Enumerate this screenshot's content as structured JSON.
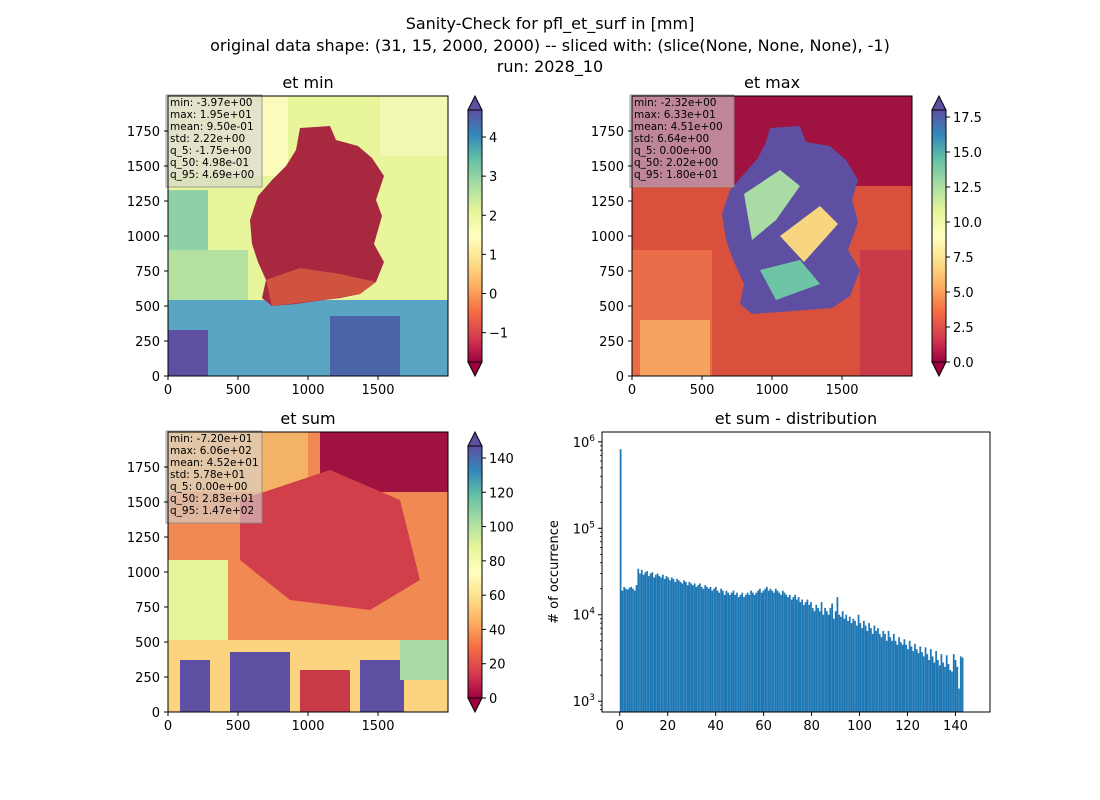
{
  "figure": {
    "title_lines": [
      "Sanity-Check for pfl_et_surf in [mm]",
      "original data shape: (31, 15, 2000, 2000) -- sliced with: (slice(None, None, None), -1)",
      "run: 2028_10"
    ]
  },
  "colormap": "Spectral",
  "colors": {
    "bar_fill": "#1f77b4",
    "stats_box": "#d3d3d3"
  },
  "chart_data": [
    {
      "type": "heatmap",
      "title": "et min",
      "xlim": [
        0,
        2000
      ],
      "ylim": [
        0,
        2000
      ],
      "xticks": [
        0,
        500,
        1000,
        1500
      ],
      "yticks": [
        0,
        250,
        500,
        750,
        1000,
        1250,
        1500,
        1750
      ],
      "colorbar": {
        "min": -1.75,
        "max": 4.69,
        "ticks": [
          -1,
          0,
          1,
          2,
          3,
          4
        ],
        "extend": "both"
      },
      "stats": [
        "min: -3.97e+00",
        "max: 1.95e+01",
        "mean: 9.50e-01",
        "std: 2.22e+00",
        "q_5: -1.75e+00",
        "q_50: 4.98e-01",
        "q_95: 4.69e+00"
      ]
    },
    {
      "type": "heatmap",
      "title": "et max",
      "xlim": [
        0,
        2000
      ],
      "ylim": [
        0,
        2000
      ],
      "xticks": [
        0,
        500,
        1000,
        1500
      ],
      "yticks": [
        0,
        250,
        500,
        750,
        1000,
        1250,
        1500,
        1750
      ],
      "colorbar": {
        "min": 0.0,
        "max": 18.0,
        "ticks": [
          0.0,
          2.5,
          5.0,
          7.5,
          10.0,
          12.5,
          15.0,
          17.5
        ],
        "extend": "both"
      },
      "stats": [
        "min: -2.32e+00",
        "max: 6.33e+01",
        "mean: 4.51e+00",
        "std: 6.64e+00",
        "q_5: 0.00e+00",
        "q_50: 2.02e+00",
        "q_95: 1.80e+01"
      ]
    },
    {
      "type": "heatmap",
      "title": "et sum",
      "xlim": [
        0,
        2000
      ],
      "ylim": [
        0,
        2000
      ],
      "xticks": [
        0,
        500,
        1000,
        1500
      ],
      "yticks": [
        0,
        250,
        500,
        750,
        1000,
        1250,
        1500,
        1750
      ],
      "colorbar": {
        "min": 0.0,
        "max": 147.0,
        "ticks": [
          0,
          20,
          40,
          60,
          80,
          100,
          120,
          140
        ],
        "extend": "both"
      },
      "stats": [
        "min: -7.20e+01",
        "max: 6.06e+02",
        "mean: 4.52e+01",
        "std: 5.78e+01",
        "q_5: 0.00e+00",
        "q_50: 2.83e+01",
        "q_95: 1.47e+02"
      ]
    },
    {
      "type": "bar",
      "title": "et sum - distribution",
      "xlabel": "",
      "ylabel": "# of occurrence",
      "xlim": [
        -7.4,
        154.4
      ],
      "ylog": true,
      "ylim": [
        750,
        1300000
      ],
      "xticks": [
        0,
        20,
        40,
        60,
        80,
        100,
        120,
        140
      ],
      "yticks": [
        {
          "value": 1000,
          "base": "10",
          "exp": "3"
        },
        {
          "value": 10000,
          "base": "10",
          "exp": "4"
        },
        {
          "value": 100000,
          "base": "10",
          "exp": "5"
        },
        {
          "value": 1000000,
          "base": "10",
          "exp": "6"
        }
      ],
      "bin_start": 0.0,
      "bin_width": 0.735,
      "counts": [
        820000,
        19000,
        21000,
        20000,
        19500,
        20500,
        21000,
        20000,
        19000,
        22000,
        34000,
        30000,
        33000,
        29000,
        31000,
        32000,
        28000,
        30000,
        31000,
        27000,
        29000,
        30000,
        28000,
        27000,
        29000,
        26000,
        28000,
        27000,
        25000,
        27000,
        26000,
        24000,
        26000,
        25000,
        24000,
        23000,
        25000,
        24000,
        22000,
        24000,
        23000,
        22000,
        23000,
        21000,
        22000,
        23000,
        21000,
        20000,
        22000,
        21000,
        20000,
        21000,
        19000,
        20000,
        21000,
        19000,
        18000,
        20000,
        19000,
        17000,
        19000,
        18000,
        17000,
        18000,
        19000,
        17000,
        18000,
        16000,
        17000,
        18000,
        16000,
        17000,
        18000,
        17000,
        19000,
        18000,
        17000,
        18000,
        19000,
        20000,
        18000,
        19000,
        20000,
        21000,
        19000,
        20000,
        19000,
        18000,
        20000,
        19000,
        18000,
        17000,
        19000,
        18000,
        17000,
        16000,
        17000,
        15000,
        16000,
        17000,
        15000,
        16000,
        14000,
        15000,
        13000,
        14000,
        15000,
        13000,
        14000,
        12000,
        11000,
        13000,
        12000,
        11000,
        14000,
        10000,
        12000,
        11000,
        10000,
        12000,
        13500,
        9000,
        11000,
        16000,
        10000,
        9500,
        11000,
        9000,
        10000,
        8500,
        9500,
        8000,
        9000,
        8500,
        7500,
        10000,
        8000,
        7000,
        8500,
        7500,
        6500,
        8000,
        7000,
        6000,
        7500,
        6500,
        7000,
        6000,
        5500,
        6500,
        6000,
        5000,
        6500,
        5500,
        5000,
        6000,
        5000,
        4500,
        5500,
        4800,
        4500,
        5200,
        4500,
        4000,
        5000,
        4300,
        3800,
        4600,
        4000,
        3600,
        4300,
        3700,
        3300,
        4200,
        3500,
        3000,
        4000,
        3300,
        2800,
        3800,
        3000,
        2600,
        3500,
        2800,
        2500,
        3400,
        2700,
        2300,
        2200,
        3500,
        3000,
        2500,
        1400,
        3300,
        3200
      ]
    }
  ]
}
